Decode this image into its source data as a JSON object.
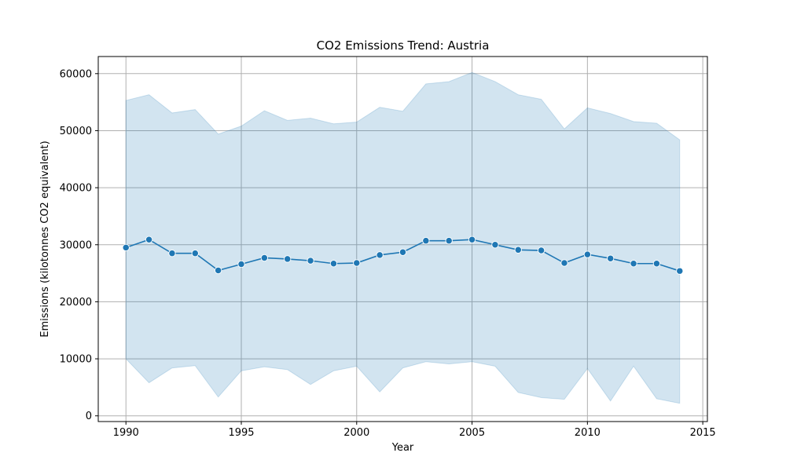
{
  "chart_data": {
    "type": "line",
    "title": "CO2 Emissions Trend: Austria",
    "xlabel": "Year",
    "ylabel": "Emissions (kilotonnes CO2 equivalent)",
    "xlim": [
      1988.8,
      2015.2
    ],
    "ylim": [
      -1000,
      63000
    ],
    "xticks": [
      1990,
      1995,
      2000,
      2005,
      2010,
      2015
    ],
    "yticks": [
      0,
      10000,
      20000,
      30000,
      40000,
      50000,
      60000
    ],
    "grid": true,
    "legend": "none",
    "colors": {
      "line": "#1f77b4",
      "band": "#1f77b4",
      "grid": "#b0b0b0"
    },
    "series": [
      {
        "x": [
          1990,
          1991,
          1992,
          1993,
          1994,
          1995,
          1996,
          1997,
          1998,
          1999,
          2000,
          2001,
          2002,
          2003,
          2004,
          2005,
          2006,
          2007,
          2008,
          2009,
          2010,
          2011,
          2012,
          2013,
          2014
        ],
        "y": [
          29500,
          30900,
          28500,
          28500,
          25500,
          26600,
          27700,
          27500,
          27200,
          26700,
          26800,
          28200,
          28700,
          30700,
          30700,
          30900,
          30000,
          29100,
          29000,
          26800,
          28300,
          27600,
          26700,
          26700,
          25400
        ],
        "lower": [
          10000,
          5800,
          8400,
          8800,
          3300,
          7900,
          8600,
          8100,
          5500,
          7900,
          8700,
          4200,
          8400,
          9500,
          9100,
          9500,
          8700,
          4100,
          3200,
          2900,
          8300,
          2600,
          8700,
          3000,
          2200
        ],
        "upper": [
          55300,
          56300,
          53100,
          53700,
          49400,
          50800,
          53500,
          51800,
          52200,
          51200,
          51500,
          54100,
          53400,
          58200,
          58600,
          60200,
          58600,
          56300,
          55500,
          50300,
          54000,
          53000,
          51600,
          51300,
          48400
        ]
      }
    ]
  }
}
